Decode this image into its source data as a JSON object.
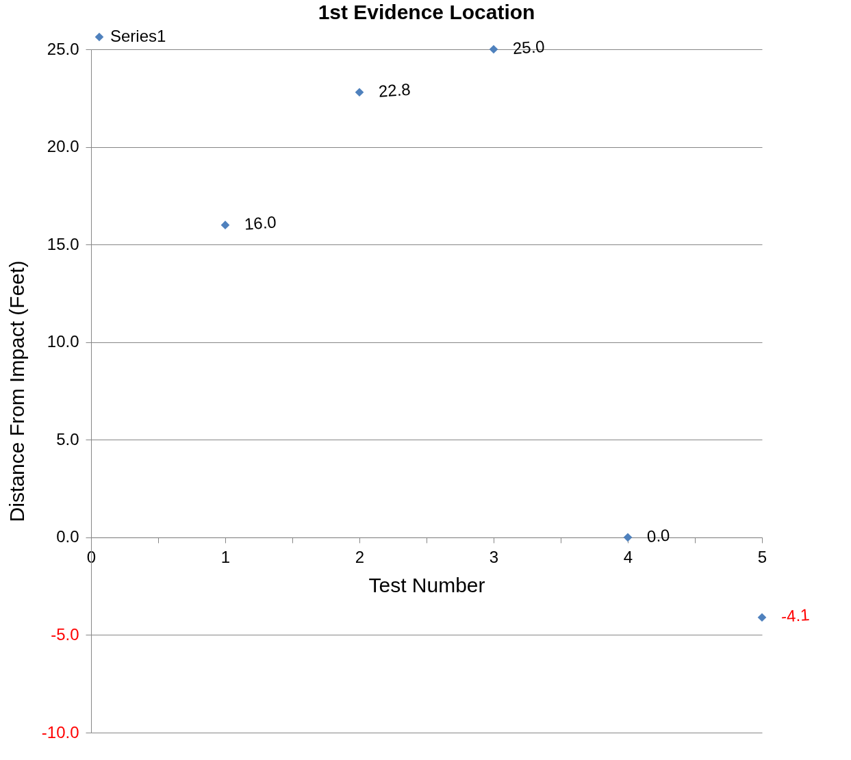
{
  "chart_data": {
    "type": "scatter",
    "title": "1st Evidence Location",
    "xlabel": "Test Number",
    "ylabel": "Distance From Impact (Feet)",
    "x": [
      1,
      2,
      3,
      4,
      5
    ],
    "series": [
      {
        "name": "Series1",
        "color": "#4f81bd",
        "values": [
          16.0,
          22.8,
          25.0,
          0.0,
          -4.1
        ],
        "value_labels": [
          "16.0",
          "22.8",
          "25.0",
          "0.0",
          "-4.1"
        ]
      }
    ],
    "xlim": [
      0,
      5
    ],
    "xticks": [
      0,
      {
        "value": 0.5,
        "label": null
      },
      1,
      {
        "value": 1.5,
        "label": null
      },
      2,
      {
        "value": 2.5,
        "label": null
      },
      3,
      {
        "value": 3.5,
        "label": null
      },
      4,
      {
        "value": 4.5,
        "label": null
      },
      5
    ],
    "ylim": [
      -10,
      25
    ],
    "yticks": [
      {
        "value": -10,
        "label": "-10.0"
      },
      {
        "value": -5,
        "label": "-5.0"
      },
      {
        "value": 0,
        "label": "0.0"
      },
      {
        "value": 5,
        "label": "5.0"
      },
      {
        "value": 10,
        "label": "10.0"
      },
      {
        "value": 15,
        "label": "15.0"
      },
      {
        "value": 20,
        "label": "20.0"
      },
      {
        "value": 25,
        "label": "25.0"
      }
    ],
    "grid": "y",
    "legend": "top",
    "marker": "diamond"
  }
}
